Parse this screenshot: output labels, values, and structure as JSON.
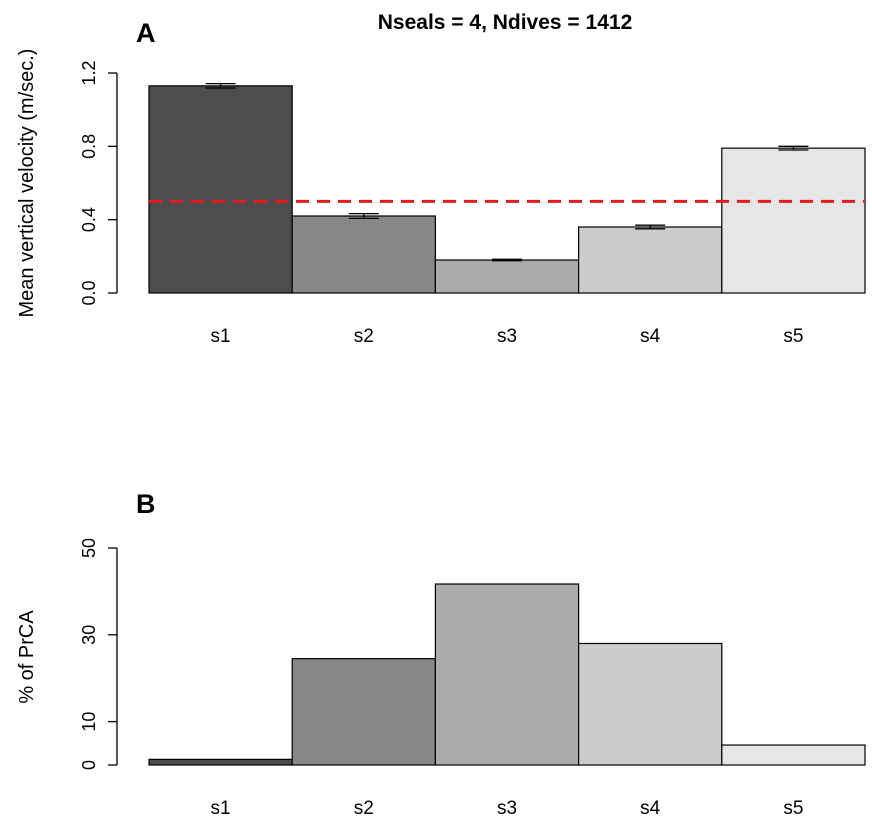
{
  "chart_data": [
    {
      "panel_label": "A",
      "type": "bar",
      "title": "Nseals = 4, Ndives = 1412",
      "xlabel": "",
      "ylabel": "Mean vertical velocity (m/sec.)",
      "categories": [
        "s1",
        "s2",
        "s3",
        "s4",
        "s5"
      ],
      "values": [
        1.13,
        0.42,
        0.18,
        0.36,
        0.79
      ],
      "error": [
        0.012,
        0.013,
        0.004,
        0.01,
        0.01
      ],
      "colors": [
        "#4d4d4d",
        "#878787",
        "#ababab",
        "#cccccc",
        "#e6e6e6"
      ],
      "yticks": [
        0.0,
        0.4,
        0.8,
        1.2
      ],
      "ytick_labels": [
        "0.0",
        "0.4",
        "0.8",
        "1.2"
      ],
      "ylim": [
        0,
        1.2
      ],
      "reference_line": {
        "y": 0.5,
        "style": "dashed",
        "color": "#e41a1c"
      },
      "grid": false,
      "legend": "none"
    },
    {
      "panel_label": "B",
      "type": "bar",
      "title": "",
      "xlabel": "",
      "ylabel": "% of PrCA",
      "categories": [
        "s1",
        "s2",
        "s3",
        "s4",
        "s5"
      ],
      "values": [
        1.3,
        24.5,
        41.7,
        28.0,
        4.6
      ],
      "colors": [
        "#4d4d4d",
        "#878787",
        "#ababab",
        "#cccccc",
        "#e6e6e6"
      ],
      "yticks": [
        0,
        10,
        30,
        50
      ],
      "ytick_labels": [
        "0",
        "10",
        "30",
        "50"
      ],
      "ylim": [
        0,
        50
      ],
      "grid": false,
      "legend": "none"
    }
  ]
}
